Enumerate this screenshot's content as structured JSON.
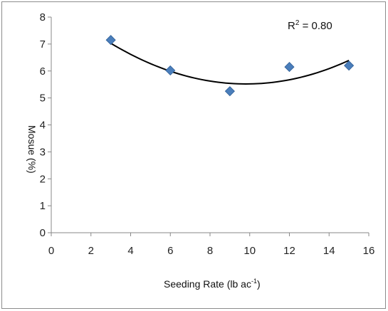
{
  "chart_data": {
    "type": "scatter",
    "xlabel": "Seeding Rate (lb ac",
    "xlabel_superscript": "-1",
    "xlabel_suffix": ")",
    "ylabel": "Mosue (%)",
    "xlim": [
      0,
      16
    ],
    "ylim": [
      0,
      8
    ],
    "x_ticks": [
      "0",
      "2",
      "4",
      "6",
      "8",
      "10",
      "12",
      "14",
      "16"
    ],
    "y_ticks": [
      "0",
      "1",
      "2",
      "3",
      "4",
      "5",
      "6",
      "7",
      "8"
    ],
    "grid": false,
    "legend": "none",
    "series": [
      {
        "x": [
          3,
          6,
          9,
          12,
          15
        ],
        "y": [
          7.15,
          6.02,
          5.25,
          6.15,
          6.2
        ],
        "marker": "diamond",
        "color": "#4a7ebb"
      }
    ],
    "trendline": {
      "type": "polynomial-2",
      "coefficients": [
        0.0325,
        -0.638,
        8.65
      ],
      "x_range": [
        3,
        15
      ],
      "color": "#000000"
    },
    "annotation": {
      "r2_text": "R",
      "r2_superscript": "2",
      "r2_value": " = 0.80"
    }
  }
}
